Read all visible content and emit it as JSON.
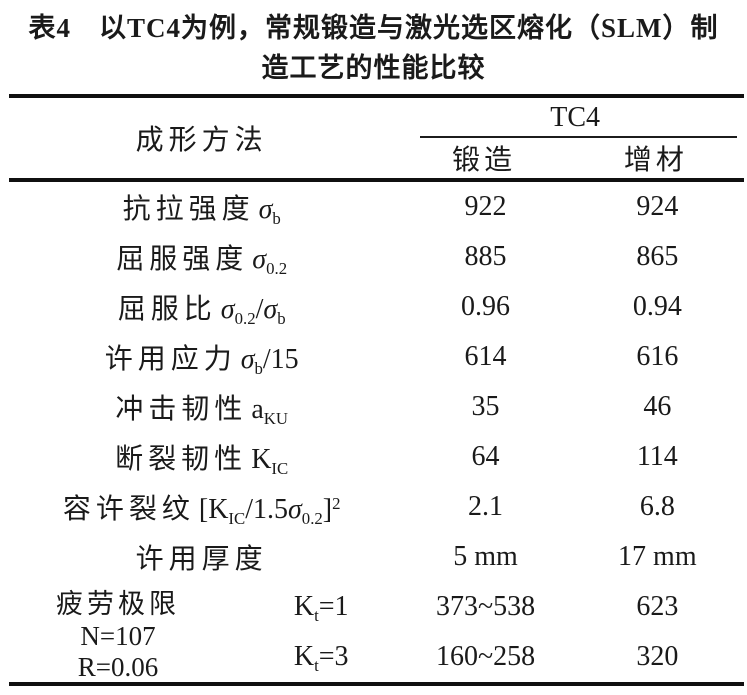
{
  "title": {
    "line1": "表4　以TC4为例，常规锻造与激光选区熔化（SLM）制",
    "line2": "造工艺的性能比较"
  },
  "header": {
    "method": "成形方法",
    "group": "TC4",
    "col_forging": "锻造",
    "col_additive": "增材"
  },
  "rows": {
    "r1": {
      "label": "抗拉强度",
      "sym": "σ",
      "sub": "b",
      "forge": "922",
      "add": "924"
    },
    "r2": {
      "label": "屈服强度",
      "sym": "σ",
      "sub": "0.2",
      "forge": "885",
      "add": "865"
    },
    "r3": {
      "label": "屈服比",
      "sym1": "σ",
      "sub1": "0.2",
      "slash": "/",
      "sym2": "σ",
      "sub2": "b",
      "forge": "0.96",
      "add": "0.94"
    },
    "r4": {
      "label": "许用应力",
      "sym": "σ",
      "sub": "b",
      "tail": "/15",
      "forge": "614",
      "add": "616"
    },
    "r5": {
      "label": "冲击韧性",
      "sym": "a",
      "sub": "KU",
      "forge": "35",
      "add": "46"
    },
    "r6": {
      "label": "断裂韧性",
      "sym": "K",
      "sub": "IC",
      "forge": "64",
      "add": "114"
    },
    "r7": {
      "label": "容许裂纹",
      "open": "[K",
      "sub1": "IC",
      "mid": "/1.5",
      "sym": "σ",
      "sub2": "0.2",
      "close": "]",
      "sup": "2",
      "forge": "2.1",
      "add": "6.8"
    },
    "r8": {
      "label": "许用厚度",
      "forge": "5 mm",
      "add": "17 mm"
    }
  },
  "fatigue": {
    "head1": "疲劳极限",
    "head2": "N=107",
    "head3": "R=0.06",
    "k1": {
      "sym": "K",
      "sub": "t",
      "eq": "=1",
      "forge": "373~538",
      "add": "623"
    },
    "k3": {
      "sym": "K",
      "sub": "t",
      "eq": "=3",
      "forge": "160~258",
      "add": "320"
    }
  },
  "chart_data": {
    "type": "table",
    "title": "表4 以TC4为例，常规锻造与激光选区熔化（SLM）制造工艺的性能比较",
    "columns": [
      "成形方法",
      "TC4 锻造",
      "TC4 增材"
    ],
    "rows": [
      [
        "抗拉强度 σb",
        "922",
        "924"
      ],
      [
        "屈服强度 σ0.2",
        "885",
        "865"
      ],
      [
        "屈服比 σ0.2/σb",
        "0.96",
        "0.94"
      ],
      [
        "许用应力 σb/15",
        "614",
        "616"
      ],
      [
        "冲击韧性 aKU",
        "35",
        "46"
      ],
      [
        "断裂韧性 KIC",
        "64",
        "114"
      ],
      [
        "容许裂纹 [KIC/1.5σ0.2]²",
        "2.1",
        "6.8"
      ],
      [
        "许用厚度",
        "5 mm",
        "17 mm"
      ],
      [
        "疲劳极限 N=107 R=0.06, Kt=1",
        "373~538",
        "623"
      ],
      [
        "疲劳极限 N=107 R=0.06, Kt=3",
        "160~258",
        "320"
      ]
    ]
  }
}
